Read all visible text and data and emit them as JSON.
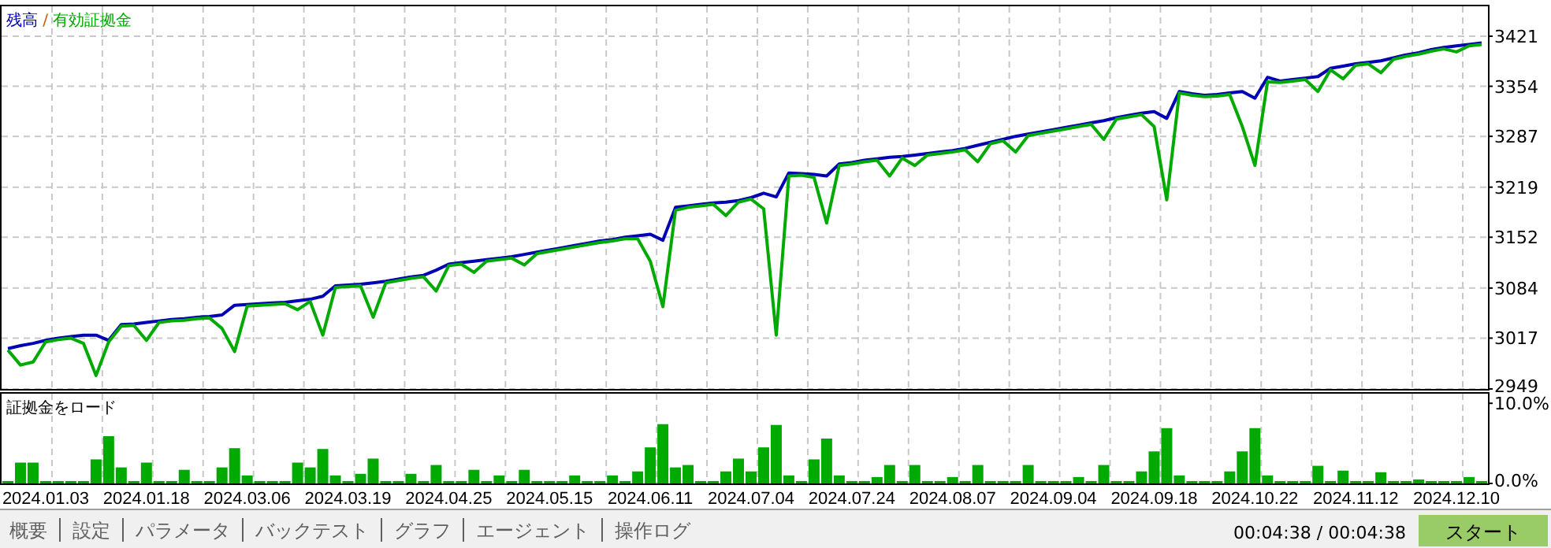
{
  "chart_data": [
    {
      "type": "line",
      "legend": "top left",
      "grid": true,
      "tick_labels": "y",
      "annotations": [
        "/"
      ],
      "ylim": [
        2949,
        3461
      ],
      "categories": [
        null,
        null,
        null,
        "2024.01.03",
        null,
        null,
        null,
        null,
        null,
        null,
        null,
        "2024.01.18",
        null,
        null,
        null,
        null,
        null,
        null,
        null,
        "2024.03.06",
        null,
        null,
        null,
        null,
        null,
        null,
        null,
        "2024.03.19",
        null,
        null,
        null,
        null,
        null,
        null,
        null,
        "2024.04.25",
        null,
        null,
        null,
        null,
        null,
        null,
        null,
        "2024.05.15",
        null,
        null,
        null,
        null,
        null,
        null,
        null,
        "2024.06.11",
        null,
        null,
        null,
        null,
        null,
        null,
        null,
        "2024.07.04",
        null,
        null,
        null,
        null,
        null,
        null,
        null,
        "2024.07.24",
        null,
        null,
        null,
        null,
        null,
        null,
        null,
        "2024.08.07",
        null,
        null,
        null,
        null,
        null,
        null,
        null,
        "2024.09.04",
        null,
        null,
        null,
        null,
        null,
        null,
        null,
        "2024.09.18",
        null,
        null,
        null,
        null,
        null,
        null,
        null,
        "2024.10.22",
        null,
        null,
        null,
        null,
        null,
        null,
        null,
        "2024.11.12",
        null,
        null,
        null,
        null,
        null,
        null,
        null,
        "2024.12.10",
        null,
        null
      ],
      "yticks": [
        2949,
        3017,
        3084,
        3152,
        3219,
        3287,
        3354,
        3421
      ],
      "series": [
        {
          "name": "残高",
          "color": "#0000b4",
          "values": [
            3003,
            3007,
            3010,
            3014,
            3017,
            3019,
            3021,
            3021,
            3014,
            3035,
            3036,
            3038,
            3040,
            3042,
            3043,
            3045,
            3046,
            3048,
            3061,
            3062,
            3063,
            3064,
            3065,
            3067,
            3069,
            3073,
            3087,
            3088,
            3089,
            3091,
            3093,
            3096,
            3099,
            3101,
            3108,
            3116,
            3118,
            3120,
            3122,
            3124,
            3126,
            3129,
            3132,
            3135,
            3138,
            3141,
            3144,
            3147,
            3149,
            3152,
            3154,
            3156,
            3148,
            3192,
            3194,
            3196,
            3198,
            3199,
            3201,
            3205,
            3211,
            3206,
            3238,
            3237,
            3236,
            3234,
            3250,
            3252,
            3255,
            3257,
            3259,
            3260,
            3262,
            3264,
            3266,
            3268,
            3271,
            3275,
            3279,
            3283,
            3287,
            3290,
            3293,
            3296,
            3299,
            3302,
            3305,
            3308,
            3312,
            3315,
            3318,
            3320,
            3311,
            3347,
            3344,
            3342,
            3343,
            3345,
            3347,
            3338,
            3366,
            3361,
            3363,
            3365,
            3367,
            3378,
            3381,
            3384,
            3386,
            3388,
            3392,
            3396,
            3399,
            3403,
            3406,
            3408,
            3410,
            3412
          ]
        },
        {
          "name": "有効証拠金",
          "color": "#00aa00",
          "values": [
            3001,
            2981,
            2985,
            3012,
            3015,
            3017,
            3010,
            2967,
            3012,
            3033,
            3034,
            3014,
            3038,
            3040,
            3041,
            3043,
            3044,
            3030,
            2999,
            3060,
            3061,
            3062,
            3063,
            3055,
            3066,
            3021,
            3085,
            3086,
            3087,
            3045,
            3091,
            3094,
            3097,
            3099,
            3080,
            3114,
            3116,
            3105,
            3120,
            3122,
            3124,
            3115,
            3130,
            3133,
            3136,
            3139,
            3142,
            3145,
            3147,
            3150,
            3150,
            3120,
            3059,
            3188,
            3192,
            3194,
            3196,
            3181,
            3199,
            3203,
            3190,
            3021,
            3234,
            3235,
            3232,
            3171,
            3248,
            3250,
            3253,
            3255,
            3234,
            3258,
            3248,
            3262,
            3264,
            3266,
            3269,
            3253,
            3277,
            3281,
            3266,
            3288,
            3291,
            3294,
            3297,
            3300,
            3303,
            3283,
            3310,
            3313,
            3316,
            3300,
            3202,
            3345,
            3342,
            3340,
            3341,
            3343,
            3300,
            3248,
            3360,
            3359,
            3361,
            3363,
            3347,
            3376,
            3364,
            3382,
            3384,
            3372,
            3390,
            3394,
            3397,
            3401,
            3404,
            3400,
            3408,
            3410
          ]
        }
      ]
    },
    {
      "type": "bar",
      "title": "証拠金をロード",
      "grid": "x",
      "ylim": [
        0,
        11.2
      ],
      "categories": [
        null,
        null,
        null,
        "2024.01.03",
        null,
        null,
        null,
        null,
        null,
        null,
        null,
        "2024.01.18",
        null,
        null,
        null,
        null,
        null,
        null,
        null,
        "2024.03.06",
        null,
        null,
        null,
        null,
        null,
        null,
        null,
        "2024.03.19",
        null,
        null,
        null,
        null,
        null,
        null,
        null,
        "2024.04.25",
        null,
        null,
        null,
        null,
        null,
        null,
        null,
        "2024.05.15",
        null,
        null,
        null,
        null,
        null,
        null,
        null,
        "2024.06.11",
        null,
        null,
        null,
        null,
        null,
        null,
        null,
        "2024.07.04",
        null,
        null,
        null,
        null,
        null,
        null,
        null,
        "2024.07.24",
        null,
        null,
        null,
        null,
        null,
        null,
        null,
        "2024.08.07",
        null,
        null,
        null,
        null,
        null,
        null,
        null,
        "2024.09.04",
        null,
        null,
        null,
        null,
        null,
        null,
        null,
        "2024.09.18",
        null,
        null,
        null,
        null,
        null,
        null,
        null,
        "2024.10.22",
        null,
        null,
        null,
        null,
        null,
        null,
        null,
        "2024.11.12",
        null,
        null,
        null,
        null,
        null,
        null,
        null,
        "2024.12.10",
        null,
        null
      ],
      "yticks": [
        {
          "value": 0,
          "label": "0.0%"
        },
        {
          "value": 10,
          "label": "10.0%"
        }
      ],
      "series": [
        {
          "color": "#00aa00",
          "values": [
            0.3,
            2.6,
            2.6,
            0.3,
            0.3,
            0.3,
            0.3,
            3.0,
            5.9,
            2.0,
            0.3,
            2.6,
            0.3,
            0.3,
            1.7,
            0.3,
            0.3,
            2.0,
            4.4,
            1.0,
            0.3,
            0.3,
            0.3,
            2.6,
            2.0,
            4.3,
            1.0,
            0.3,
            1.2,
            3.1,
            0.3,
            0.3,
            1.2,
            0.3,
            2.3,
            0.3,
            0.3,
            1.7,
            0.3,
            1.0,
            0.3,
            1.7,
            0.3,
            0.3,
            0.3,
            1.0,
            0.3,
            0.3,
            1.0,
            0.3,
            1.5,
            4.5,
            7.4,
            2.0,
            2.3,
            0.3,
            0.3,
            1.5,
            3.1,
            1.5,
            4.5,
            7.3,
            1.0,
            0.3,
            3.0,
            5.6,
            1.0,
            0.3,
            0.3,
            0.8,
            2.3,
            0.3,
            2.3,
            0.3,
            0.3,
            0.8,
            0.3,
            2.3,
            0.3,
            0.3,
            0.3,
            2.3,
            0.3,
            0.3,
            0.3,
            0.8,
            0.3,
            2.3,
            0.3,
            0.3,
            1.5,
            4.0,
            6.9,
            1.0,
            0.3,
            0.3,
            0.3,
            1.5,
            4.0,
            6.9,
            1.0,
            0.3,
            0.3,
            0.3,
            2.2,
            0.3,
            1.6,
            0.3,
            0.3,
            1.4,
            0.3,
            0.3,
            0.5,
            0.3,
            0.3,
            0.3,
            0.8,
            0.3
          ]
        }
      ]
    },
    {
      "type": "other",
      "annotations": [
        "概要",
        "設定",
        "パラメータ",
        "バックテスト",
        "グラフ",
        "エージェント",
        "操作ログ",
        "00:04:38 / 00:04:38",
        "スタート"
      ]
    }
  ]
}
